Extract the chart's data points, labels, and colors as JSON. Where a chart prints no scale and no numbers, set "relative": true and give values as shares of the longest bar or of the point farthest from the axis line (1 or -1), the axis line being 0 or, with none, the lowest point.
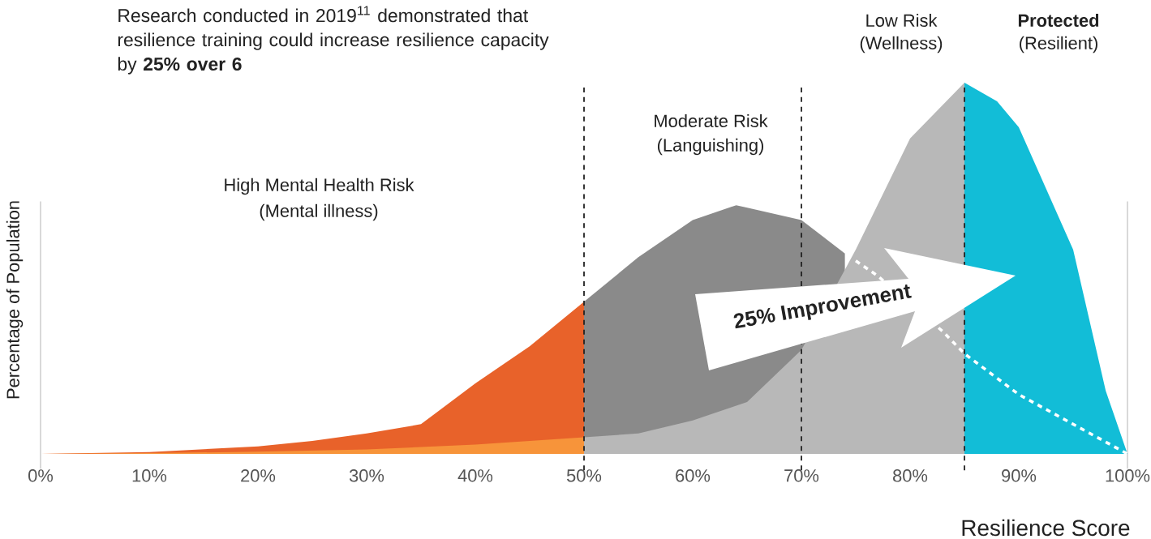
{
  "chart_data": {
    "type": "area",
    "relative": true,
    "tick_labels": "x",
    "title": "Research conducted in 2019$^{11}$ demonstrated that resilience training could increase resilience capacity by **25% over 6**",
    "xlabel": "Resilience Score",
    "ylabel": "Percentage of Population",
    "xlim": [
      0,
      100
    ],
    "xticks": [
      {
        "value": 0,
        "label": "0%"
      },
      {
        "value": 10,
        "label": "10%"
      },
      {
        "value": 20,
        "label": "20%"
      },
      {
        "value": 30,
        "label": "30%"
      },
      {
        "value": 40,
        "label": "40%"
      },
      {
        "value": 50,
        "label": "50%"
      },
      {
        "value": 60,
        "label": "60%"
      },
      {
        "value": 70,
        "label": "70%"
      },
      {
        "value": 80,
        "label": "80%"
      },
      {
        "value": 90,
        "label": "90%"
      },
      {
        "value": 100,
        "label": "100%"
      }
    ],
    "series": [
      {
        "type": "area",
        "color": "#e8622a",
        "x": [
          0,
          10,
          20,
          25,
          30,
          35,
          40,
          45,
          50
        ],
        "values": [
          0,
          0.005,
          0.02,
          0.035,
          0.055,
          0.08,
          0.19,
          0.29,
          0.41
        ]
      },
      {
        "type": "area",
        "color": "#8a8a8a",
        "x": [
          50,
          55,
          60,
          64,
          70,
          74
        ],
        "values": [
          0.41,
          0.53,
          0.63,
          0.67,
          0.63,
          0.54
        ]
      },
      {
        "type": "area",
        "color": "#f7943a",
        "x": [
          0,
          10,
          20,
          30,
          40,
          50
        ],
        "values": [
          0,
          0.002,
          0.006,
          0.012,
          0.025,
          0.045
        ]
      },
      {
        "type": "area",
        "color": "#b8b8b8",
        "x": [
          50,
          55,
          60,
          65,
          70,
          75,
          80,
          85
        ],
        "values": [
          0.045,
          0.055,
          0.09,
          0.14,
          0.28,
          0.55,
          0.85,
          1.0
        ]
      },
      {
        "type": "area",
        "color": "#12bdd7",
        "x": [
          85,
          88,
          90,
          95,
          98,
          100
        ],
        "values": [
          1.0,
          0.95,
          0.88,
          0.55,
          0.17,
          0
        ]
      },
      {
        "type": "line",
        "line_style": "dashed",
        "color": "#ffffff",
        "x": [
          75,
          77,
          83,
          85,
          90,
          95,
          100
        ],
        "values": [
          0.52,
          0.48,
          0.33,
          0.27,
          0.16,
          0.08,
          0
        ]
      }
    ],
    "ref_lines": [
      {
        "axis": "x",
        "value": 50,
        "line_style": "dashed",
        "color": "#222222"
      },
      {
        "axis": "x",
        "value": 70,
        "line_style": "dashed",
        "color": "#222222"
      },
      {
        "axis": "x",
        "value": 85,
        "line_style": "dashed",
        "color": "#222222"
      }
    ],
    "annotations": [
      "High Mental Health Risk",
      "(Mental illness)",
      "Moderate Risk",
      "(Languishing)",
      "Low Risk",
      "(Wellness)",
      "**Protected**",
      "(Resilient)",
      "25% Improvement"
    ]
  }
}
